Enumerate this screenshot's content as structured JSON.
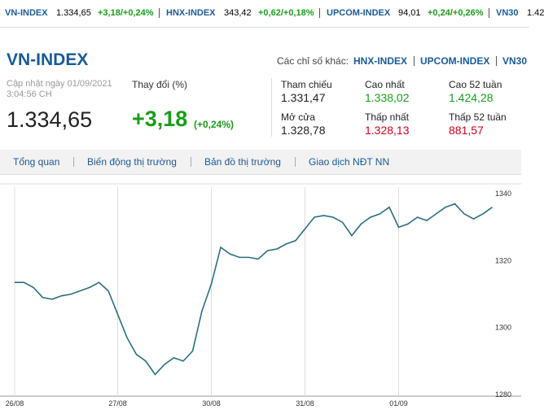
{
  "ticker": [
    {
      "name": "VN-INDEX",
      "value": "1.334,65",
      "change": "+3,18/+0,24%"
    },
    {
      "name": "HNX-INDEX",
      "value": "343,42",
      "change": "+0,62/+0,18%"
    },
    {
      "name": "UPCOM-INDEX",
      "value": "94,01",
      "change": "+0,24/+0,26%"
    },
    {
      "name": "VN30",
      "value": "1.42"
    }
  ],
  "header": {
    "title": "VN-INDEX",
    "others_label": "Các chỉ số khác:",
    "others": [
      "HNX-INDEX",
      "UPCOM-INDEX",
      "VN30"
    ]
  },
  "summary": {
    "updated": "Cập nhật ngày 01/09/2021",
    "time": "3:04:56 CH",
    "price": "1.334,65",
    "change_label": "Thay đổi (%)",
    "change": "+3,18",
    "change_pct": "(+0,24%)"
  },
  "stats": [
    {
      "label": "Tham chiếu",
      "value": "1.331,47"
    },
    {
      "label": "Cao nhất",
      "value": "1.338,02"
    },
    {
      "label": "Cao 52 tuần",
      "value": "1.424,28"
    },
    {
      "label": "Mở cửa",
      "value": "1.328,78"
    },
    {
      "label": "Thấp nhất",
      "value": "1.328,13"
    },
    {
      "label": "Thấp 52 tuần",
      "value": "881,57"
    }
  ],
  "tabs": [
    "Tổng quan",
    "Biến động thị trường",
    "Bản đồ thị trường",
    "Giao dịch NĐT NN"
  ],
  "chart_data": {
    "type": "line",
    "categories": [
      "26/08",
      null,
      null,
      null,
      null,
      null,
      null,
      null,
      null,
      null,
      null,
      "27/08",
      null,
      null,
      null,
      null,
      null,
      null,
      null,
      null,
      null,
      "30/08",
      null,
      null,
      null,
      null,
      null,
      null,
      null,
      null,
      null,
      "31/08",
      null,
      null,
      null,
      null,
      null,
      null,
      null,
      null,
      null,
      "01/09",
      null,
      null,
      null,
      null,
      null,
      null,
      null,
      null,
      null,
      null
    ],
    "series": [
      {
        "name": "VN-INDEX",
        "color": "#2a6f7f",
        "values": [
          1313.5,
          1313.5,
          1312,
          1309,
          1308.5,
          1309.5,
          1310,
          1311,
          1312,
          1313.5,
          1311,
          1304,
          1297,
          1292,
          1290,
          1286,
          1289,
          1291,
          1290,
          1293,
          1305,
          1313,
          1324,
          1322,
          1321,
          1321,
          1320.5,
          1323,
          1323.5,
          1325,
          1326,
          1329.5,
          1333,
          1333.5,
          1333,
          1331.5,
          1327.5,
          1331,
          1333,
          1334,
          1336,
          1330,
          1331,
          1333,
          1332,
          1334,
          1336,
          1337,
          1334,
          1332.5,
          1334,
          1336
        ]
      }
    ],
    "ylim": [
      1280,
      1342
    ],
    "yticks": [
      1280,
      1300,
      1320,
      1340
    ],
    "grid": true
  }
}
